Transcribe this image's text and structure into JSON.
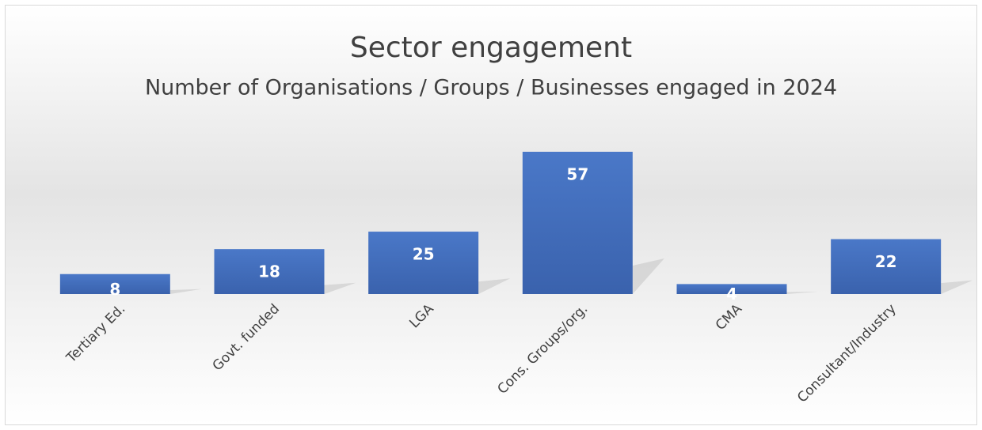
{
  "chart_data": {
    "type": "bar",
    "title": "Sector engagement",
    "subtitle": "Number of Organisations / Groups / Businesses engaged in 2024",
    "categories": [
      "Tertiary Ed.",
      "Govt. funded",
      "LGA",
      "Cons. Groups/org.",
      "CMA",
      "Consultant/Industry"
    ],
    "values": [
      8,
      18,
      25,
      57,
      4,
      22
    ],
    "color": "#4472c4"
  }
}
